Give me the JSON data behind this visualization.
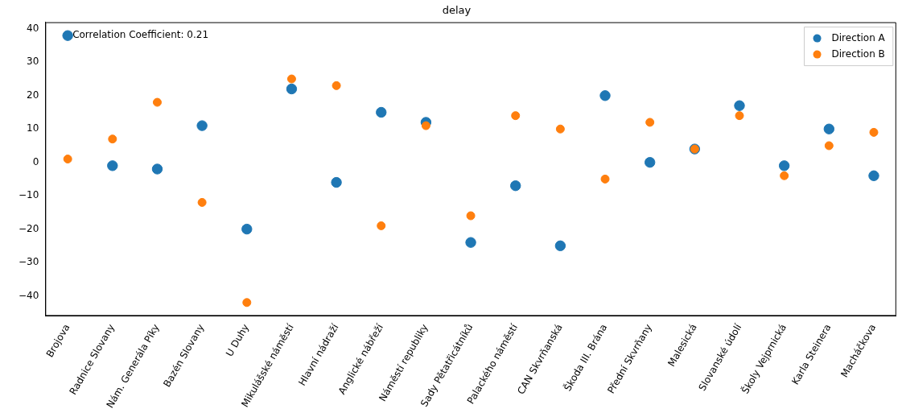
{
  "chart_data": {
    "type": "scatter",
    "title": "delay",
    "categories": [
      "Brojova",
      "Radnice Slovany",
      "Nám. Generála Píky",
      "Bazén Slovany",
      "U Duhy",
      "Mikulášské náměstí",
      "Hlavní nádraží",
      "Anglické nábřeží",
      "Náměstí republiky",
      "Sady Pětatřicátníků",
      "Palackého náměstí",
      "CAN Skvrňanská",
      "Škoda III. Brána",
      "Přední Skvrňany",
      "Malesická",
      "Slovanské údolí",
      "Školy Vejprnická",
      "Karla Steinera",
      "Macháčkova"
    ],
    "series": [
      {
        "name": "Direction A",
        "color": "#1f77b4",
        "values": [
          38,
          -1,
          -2,
          11,
          -20,
          22,
          -6,
          15,
          12,
          -24,
          -7,
          -25,
          20,
          0,
          4,
          17,
          -1,
          10,
          -4
        ]
      },
      {
        "name": "Direction B",
        "color": "#ff7f0e",
        "values": [
          1,
          7,
          18,
          -12,
          -42,
          25,
          23,
          -19,
          11,
          -16,
          14,
          10,
          -5,
          12,
          4,
          14,
          -4,
          5,
          9
        ]
      }
    ],
    "ylim": [
      -46,
      42
    ],
    "yticks": [
      -40,
      -30,
      -20,
      -10,
      0,
      10,
      20,
      30,
      40
    ],
    "grid": false,
    "legend": "top right",
    "marker": "circle",
    "annotations": [
      "Correlation Coefficient: 0.21"
    ]
  }
}
